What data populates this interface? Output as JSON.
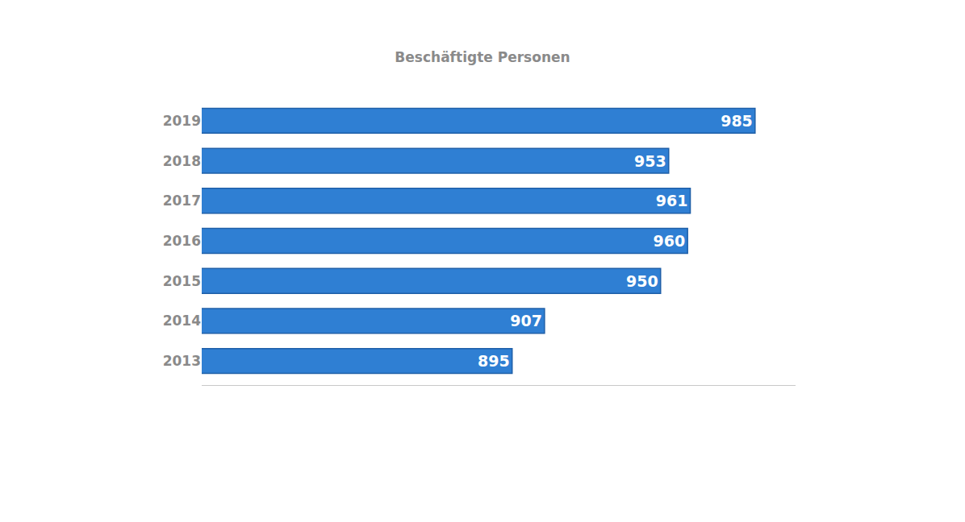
{
  "chart_data": {
    "type": "bar",
    "orientation": "horizontal",
    "title": "Beschäftigte Personen",
    "categories": [
      "2013",
      "2014",
      "2015",
      "2016",
      "2017",
      "2018",
      "2019"
    ],
    "values": [
      895,
      907,
      950,
      960,
      961,
      953,
      985
    ],
    "color": "#2f7fd3",
    "xlim": [
      780,
      1000
    ],
    "data_labels": true,
    "tick_labels": "y",
    "grid": false
  }
}
